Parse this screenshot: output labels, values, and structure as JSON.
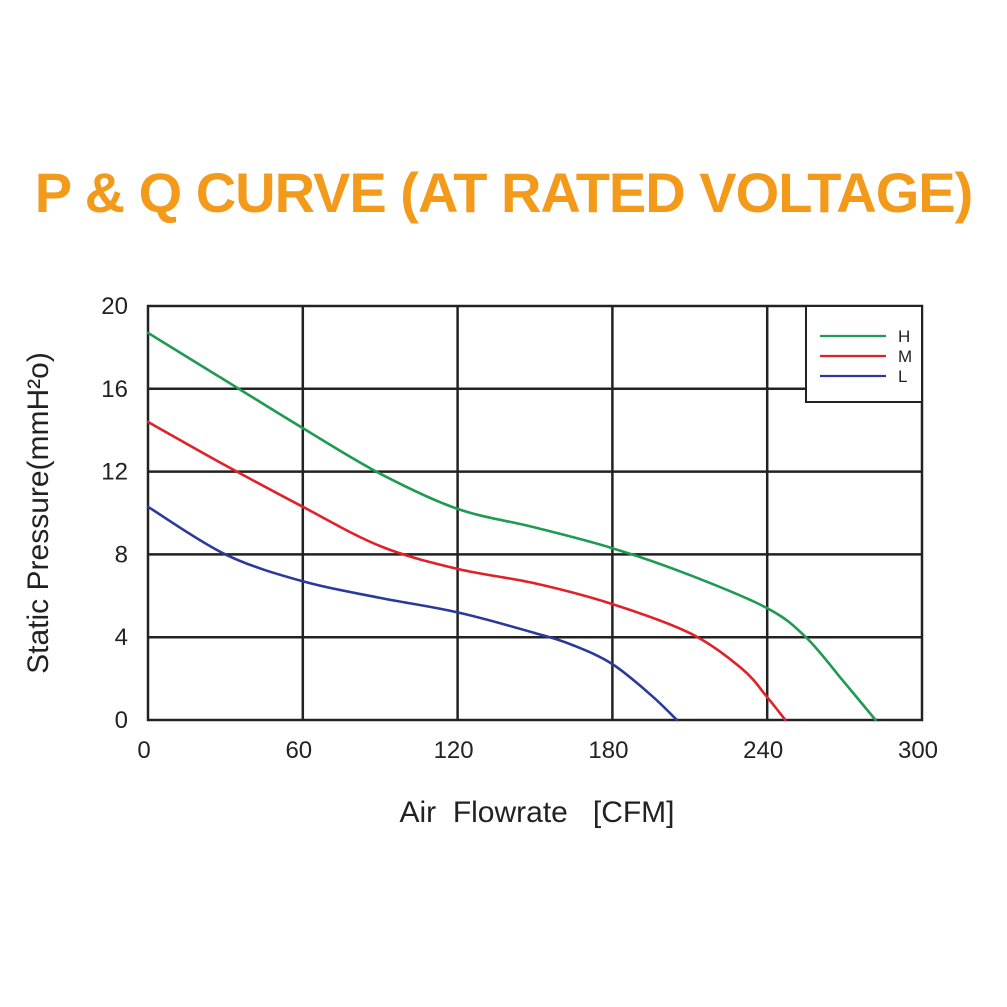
{
  "chart_data": {
    "type": "line",
    "title": "P & Q CURVE (AT RATED VOLTAGE)",
    "xlabel": "Air  Flowrate   [CFM]",
    "ylabel": "Static Pressure(mmH²o)",
    "xlim": [
      0,
      300
    ],
    "ylim": [
      0,
      20
    ],
    "xticks": [
      "0",
      "60",
      "120",
      "180",
      "240",
      "300"
    ],
    "yticks": [
      "0",
      "4",
      "8",
      "12",
      "16",
      "20"
    ],
    "grid": true,
    "legend_position": "top-right",
    "series": [
      {
        "name": "H",
        "color": "#1f9a52",
        "x": [
          0,
          30,
          60,
          90,
          120,
          150,
          180,
          210,
          240,
          255,
          270,
          282
        ],
        "y": [
          18.7,
          16.4,
          14.1,
          11.9,
          10.2,
          9.3,
          8.3,
          7.0,
          5.4,
          4.0,
          1.8,
          0
        ]
      },
      {
        "name": "M",
        "color": "#e02127",
        "x": [
          0,
          30,
          60,
          90,
          120,
          150,
          180,
          210,
          230,
          240,
          247
        ],
        "y": [
          14.4,
          12.3,
          10.3,
          8.4,
          7.3,
          6.6,
          5.6,
          4.2,
          2.5,
          1.1,
          0
        ]
      },
      {
        "name": "L",
        "color": "#2b3a9a",
        "x": [
          0,
          30,
          60,
          90,
          120,
          150,
          165,
          180,
          195,
          205
        ],
        "y": [
          10.3,
          8.0,
          6.7,
          5.9,
          5.2,
          4.2,
          3.6,
          2.7,
          1.2,
          0
        ]
      }
    ]
  }
}
